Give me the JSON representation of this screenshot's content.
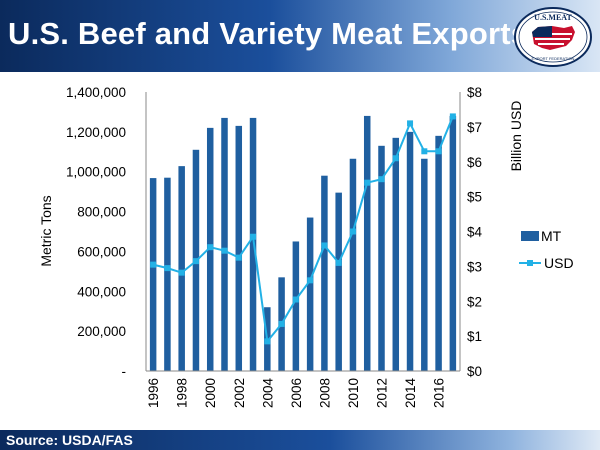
{
  "header": {
    "title": "U.S. Beef and Variety Meat Exports"
  },
  "logo": {
    "top_text": "U.S.MEAT",
    "bottom_text": "EXPORT FEDERATION"
  },
  "footer": {
    "source": "Source: USDA/FAS"
  },
  "colors": {
    "bar": "#1f5fa0",
    "line": "#22b1e6",
    "header_dark": "#0b2a5c",
    "header_mid": "#1b4f9c"
  },
  "chart_data": {
    "type": "bar+line",
    "categories": [
      "1996",
      "1997",
      "1998",
      "1999",
      "2000",
      "2001",
      "2002",
      "2003",
      "2004",
      "2005",
      "2006",
      "2007",
      "2008",
      "2009",
      "2010",
      "2011",
      "2012",
      "2013",
      "2014",
      "2015",
      "2016",
      "2017"
    ],
    "x_tick_labels": [
      "1996",
      "1998",
      "2000",
      "2002",
      "2004",
      "2006",
      "2008",
      "2010",
      "2012",
      "2014",
      "2016"
    ],
    "series": [
      {
        "name": "MT",
        "type": "bar",
        "axis": "left",
        "values": [
          968000,
          970000,
          1028000,
          1110000,
          1220000,
          1270000,
          1230000,
          1270000,
          320000,
          470000,
          650000,
          770000,
          980000,
          895000,
          1065000,
          1280000,
          1130000,
          1170000,
          1200000,
          1065000,
          1180000,
          1280000
        ]
      },
      {
        "name": "USD",
        "type": "line",
        "axis": "right",
        "values": [
          3.05,
          2.95,
          2.82,
          3.15,
          3.55,
          3.45,
          3.25,
          3.85,
          0.85,
          1.35,
          2.05,
          2.6,
          3.6,
          3.1,
          4.0,
          5.4,
          5.5,
          6.1,
          7.1,
          6.3,
          6.3,
          7.3
        ]
      }
    ],
    "ylabel": "Metric Tons",
    "y2label": "Billion USD",
    "ylim": [
      0,
      1400000
    ],
    "y2lim": [
      0,
      8
    ],
    "y_ticks": [
      0,
      200000,
      400000,
      600000,
      800000,
      1000000,
      1200000,
      1400000
    ],
    "y_tick_labels": [
      "-",
      "200,000",
      "400,000",
      "600,000",
      "800,000",
      "1,000,000",
      "1,200,000",
      "1,400,000"
    ],
    "y2_ticks": [
      0,
      1,
      2,
      3,
      4,
      5,
      6,
      7,
      8
    ],
    "y2_tick_labels": [
      "$0",
      "$1",
      "$2",
      "$3",
      "$4",
      "$5",
      "$6",
      "$7",
      "$8"
    ],
    "grid": false,
    "legend_position": "right"
  }
}
